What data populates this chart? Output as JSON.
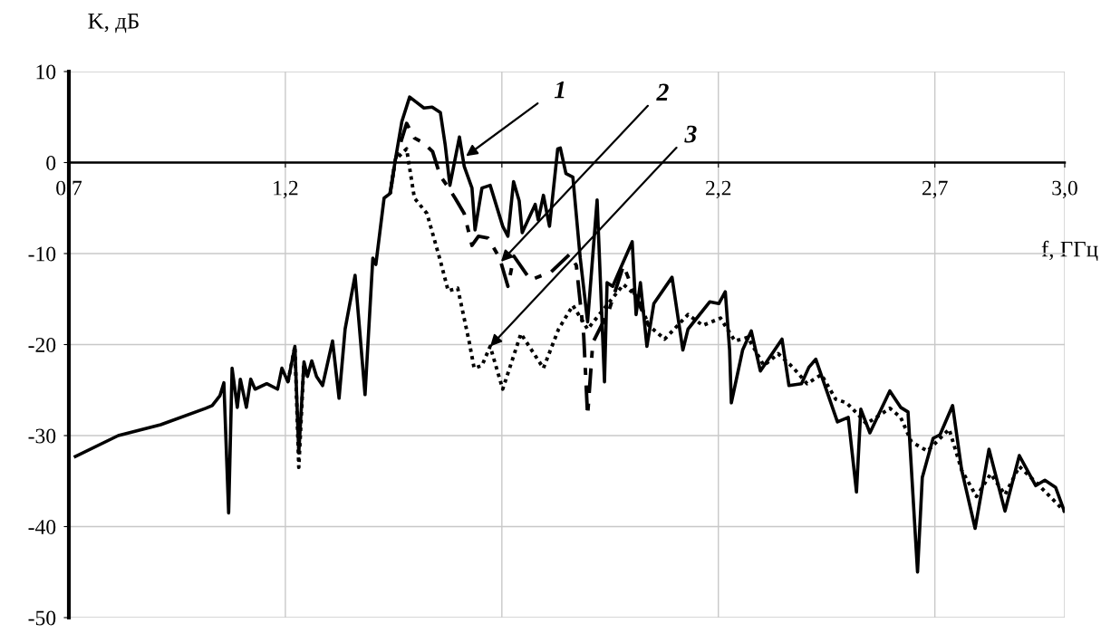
{
  "chart_data": {
    "type": "line",
    "xlabel": "f, ГГц",
    "ylabel": "K, дБ",
    "xlim": [
      0.7,
      3.0
    ],
    "ylim": [
      -50,
      10
    ],
    "xticks": [
      {
        "value": 0.7,
        "label": "0,7"
      },
      {
        "value": 1.2,
        "label": "1,2"
      },
      {
        "value": 1.7,
        "label": null
      },
      {
        "value": 2.2,
        "label": "2,2"
      },
      {
        "value": 2.7,
        "label": "2,7"
      },
      {
        "value": 3.0,
        "label": "3,0"
      }
    ],
    "yticks": [
      -50,
      -40,
      -30,
      -20,
      -10,
      0,
      10
    ],
    "grid": true,
    "legend": false,
    "marker": "none",
    "series": [
      {
        "color": "#000000",
        "line_style": "solid",
        "x": [
          0.715,
          0.814,
          0.912,
          1.016,
          1.031,
          1.049,
          1.058,
          1.069,
          1.077,
          1.089,
          1.096,
          1.11,
          1.12,
          1.13,
          1.157,
          1.182,
          1.192,
          1.206,
          1.222,
          1.231,
          1.243,
          1.251,
          1.261,
          1.272,
          1.286,
          1.309,
          1.324,
          1.338,
          1.361,
          1.384,
          1.402,
          1.409,
          1.428,
          1.442,
          1.454,
          1.469,
          1.487,
          1.506,
          1.52,
          1.539,
          1.558,
          1.569,
          1.58,
          1.602,
          1.613,
          1.631,
          1.638,
          1.654,
          1.673,
          1.702,
          1.714,
          1.727,
          1.74,
          1.747,
          1.777,
          1.784,
          1.796,
          1.81,
          1.829,
          1.835,
          1.848,
          1.864,
          1.881,
          1.898,
          1.92,
          1.937,
          1.943,
          1.956,
          1.977,
          2.001,
          2.01,
          2.02,
          2.035,
          2.051,
          2.093,
          2.118,
          2.13,
          2.18,
          2.201,
          2.216,
          2.226,
          2.23,
          2.256,
          2.276,
          2.297,
          2.347,
          2.363,
          2.392,
          2.409,
          2.425,
          2.475,
          2.5,
          2.519,
          2.529,
          2.55,
          2.596,
          2.621,
          2.638,
          2.66,
          2.671,
          2.696,
          2.712,
          2.741,
          2.762,
          2.793,
          2.825,
          2.862,
          2.895,
          2.933,
          2.954,
          2.979,
          2.999
        ],
        "values": [
          -32.3,
          -30.0,
          -28.8,
          -27.0,
          -26.7,
          -25.6,
          -24.2,
          -38.5,
          -22.6,
          -26.9,
          -23.8,
          -26.9,
          -23.8,
          -24.9,
          -24.3,
          -24.9,
          -22.6,
          -24.1,
          -20.2,
          -31.9,
          -21.9,
          -23.5,
          -21.8,
          -23.5,
          -24.5,
          -19.6,
          -25.9,
          -18.3,
          -12.4,
          -25.5,
          -10.5,
          -11.2,
          -3.9,
          -3.4,
          0.3,
          4.5,
          7.2,
          6.5,
          6.0,
          6.1,
          5.5,
          2.0,
          -2.5,
          2.8,
          -0.4,
          -2.8,
          -7.4,
          -2.8,
          -2.5,
          -7.0,
          -8.1,
          -2.1,
          -4.2,
          -7.7,
          -4.6,
          -6.3,
          -3.6,
          -7.0,
          1.5,
          1.6,
          -1.2,
          -1.6,
          -10.5,
          -17.5,
          -4.1,
          -24.1,
          -13.2,
          -13.6,
          -11.3,
          -8.7,
          -16.7,
          -13.2,
          -20.2,
          -15.5,
          -12.6,
          -20.6,
          -18.3,
          -15.3,
          -15.5,
          -14.2,
          -20.6,
          -26.4,
          -20.6,
          -18.5,
          -22.9,
          -19.4,
          -24.5,
          -24.3,
          -22.5,
          -21.6,
          -28.5,
          -28.0,
          -36.2,
          -27.1,
          -29.7,
          -25.1,
          -26.9,
          -27.4,
          -45.0,
          -34.6,
          -30.3,
          -29.9,
          -26.7,
          -33.8,
          -40.2,
          -31.5,
          -38.3,
          -32.2,
          -35.5,
          -34.9,
          -35.7,
          -38.3
        ]
      },
      {
        "color": "#000000",
        "line_style": "dashed",
        "x": [
          1.442,
          1.454,
          1.48,
          1.498,
          1.521,
          1.54,
          1.558,
          1.573,
          1.592,
          1.613,
          1.631,
          1.646,
          1.668,
          1.695,
          1.714,
          1.728,
          1.766,
          1.814,
          1.856,
          1.872,
          1.889,
          1.898,
          1.91,
          1.947,
          1.981,
          2.006,
          2.039
        ],
        "values": [
          -3.4,
          0.3,
          4.3,
          2.7,
          2.1,
          1.2,
          -1.5,
          -2.5,
          -3.9,
          -5.6,
          -9.1,
          -8.1,
          -8.3,
          -10.5,
          -13.6,
          -10.3,
          -12.9,
          -12.0,
          -10.1,
          -11.3,
          -19.0,
          -27.8,
          -19.8,
          -16.3,
          -11.3,
          -14.4,
          -17.9
        ]
      },
      {
        "color": "#000000",
        "line_style": "dotted",
        "x": [
          1.206,
          1.222,
          1.231,
          1.243,
          1.3,
          1.442,
          1.454,
          1.48,
          1.498,
          1.527,
          1.558,
          1.576,
          1.598,
          1.625,
          1.636,
          1.654,
          1.673,
          1.702,
          1.744,
          1.796,
          1.831,
          1.864,
          1.898,
          1.981,
          2.014,
          2.039,
          2.076,
          2.13,
          2.164,
          2.205,
          2.238,
          2.268,
          2.305,
          2.338,
          2.372,
          2.405,
          2.438,
          2.471,
          2.496,
          2.521,
          2.542,
          2.596,
          2.621,
          2.646,
          2.683,
          2.733,
          2.762,
          2.796,
          2.829,
          2.862,
          2.895,
          2.937,
          2.999
        ],
        "values": [
          -24.1,
          -20.2,
          -33.5,
          -21.9,
          null,
          -3.4,
          0.3,
          1.5,
          -3.9,
          -5.6,
          -10.8,
          -14.1,
          -13.8,
          -19.8,
          -22.6,
          -22.3,
          -20.2,
          -24.9,
          -18.8,
          -22.6,
          -18.3,
          -15.7,
          -18.3,
          -13.4,
          -14.8,
          -17.9,
          -19.4,
          -16.7,
          -17.9,
          -17.1,
          -19.6,
          -19.2,
          -22.3,
          -21.0,
          -22.5,
          -24.3,
          -23.3,
          -26.0,
          -26.4,
          -27.6,
          -28.7,
          -27.0,
          -28.0,
          -30.7,
          -31.7,
          -29.3,
          -33.8,
          -36.7,
          -34.2,
          -36.5,
          -33.4,
          -35.3,
          -38.3
        ]
      }
    ],
    "annotations": [
      {
        "text": "1",
        "x": 1.617,
        "y": 0.7
      },
      {
        "text": "2",
        "x": 1.698,
        "y": -10.9
      },
      {
        "text": "3",
        "x": 1.673,
        "y": -20.2
      }
    ]
  }
}
